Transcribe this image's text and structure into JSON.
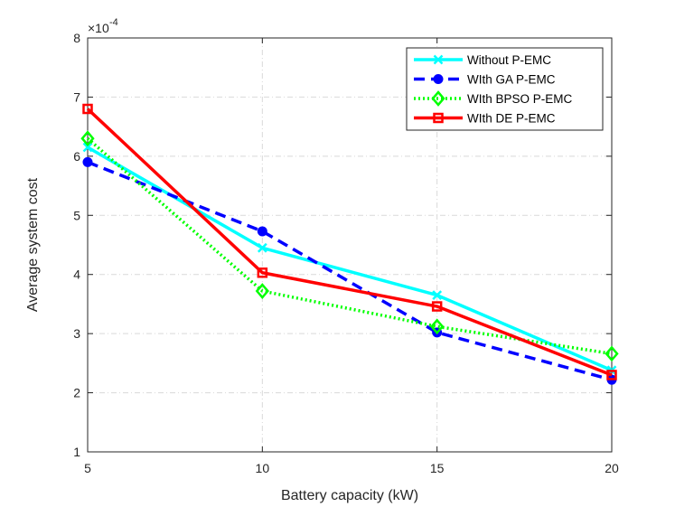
{
  "chart_data": {
    "type": "line",
    "title": "",
    "xlabel": "Battery capacity (kW)",
    "ylabel": "Average system cost",
    "x": [
      5,
      10,
      15,
      20
    ],
    "xlim": [
      5,
      20
    ],
    "ylim": [
      1,
      8
    ],
    "xticks": [
      "5",
      "10",
      "15",
      "20"
    ],
    "yticks": [
      "1",
      "2",
      "3",
      "4",
      "5",
      "6",
      "7",
      "8"
    ],
    "y_exponent_label": "×10",
    "y_exponent": "-4",
    "grid": true,
    "legend_position": "top-right",
    "series": [
      {
        "name": "Without P-EMC",
        "values": [
          6.15,
          4.45,
          3.65,
          2.38
        ],
        "color": "#00ffff",
        "dash": "solid",
        "marker": "x-mark"
      },
      {
        "name": "WIth GA P-EMC",
        "values": [
          5.9,
          4.73,
          3.02,
          2.22
        ],
        "color": "#0000ff",
        "dash": "dashed",
        "marker": "circle"
      },
      {
        "name": "WIth BPSO P-EMC",
        "values": [
          6.3,
          3.72,
          3.12,
          2.66
        ],
        "color": "#00ff00",
        "dash": "dotted",
        "marker": "diamond"
      },
      {
        "name": "WIth DE P-EMC",
        "values": [
          6.8,
          4.03,
          3.46,
          2.3
        ],
        "color": "#ff0000",
        "dash": "solid",
        "marker": "square"
      }
    ]
  }
}
